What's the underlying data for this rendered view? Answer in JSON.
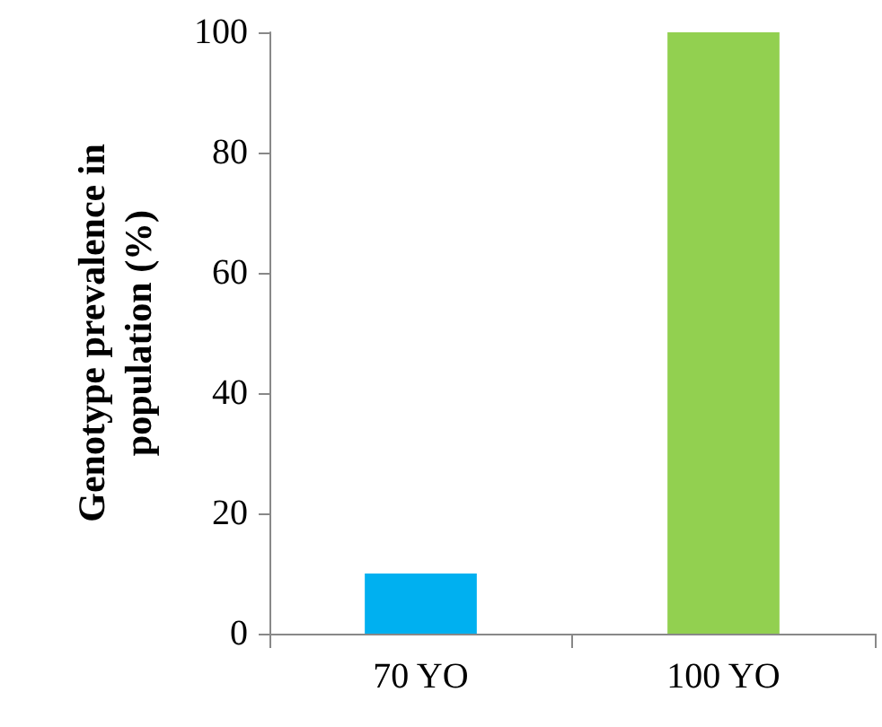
{
  "chart_data": {
    "type": "bar",
    "ylabel": "Genotype prevalence in population (%)",
    "categories": [
      "70 YO",
      "100 YO"
    ],
    "values": [
      10,
      100
    ],
    "colors": [
      "#00b0f0",
      "#92d050"
    ],
    "ylim": [
      0,
      100
    ],
    "yticks": [
      0,
      20,
      40,
      60,
      80,
      100
    ],
    "grid": false
  }
}
